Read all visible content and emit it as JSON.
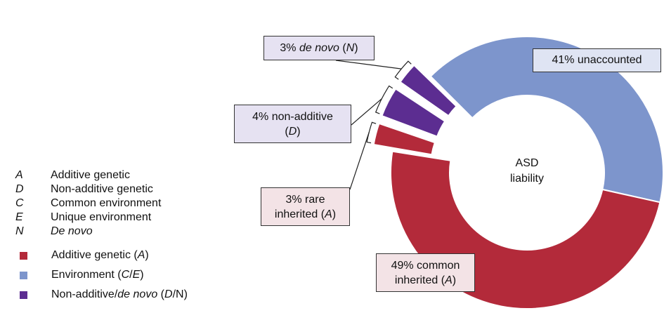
{
  "center_label": {
    "line1": "ASD",
    "line2": "liability"
  },
  "callouts": {
    "unaccounted": "41% unaccounted",
    "denovo_prefix": "3% ",
    "denovo_italic": "de novo",
    "denovo_paren_open": " (",
    "denovo_code": "N",
    "denovo_paren_close": ")",
    "nonadditive_line1": "4% non-additive",
    "nonadditive_paren_open": "(",
    "nonadditive_code": "D",
    "nonadditive_paren_close": ")",
    "rare_line1": "3% rare",
    "rare_line2_prefix": "inherited (",
    "rare_code": "A",
    "rare_line2_suffix": ")",
    "common_line1": "49% common",
    "common_line2_prefix": "inherited (",
    "common_code": "A",
    "common_line2_suffix": ")"
  },
  "legend_codes": [
    {
      "code": "A",
      "label": "Additive genetic"
    },
    {
      "code": "D",
      "label": "Non-additive genetic"
    },
    {
      "code": "C",
      "label": "Common environment"
    },
    {
      "code": "E",
      "label": "Unique environment"
    },
    {
      "code": "N",
      "label": "De novo"
    }
  ],
  "legend_colors": [
    {
      "color": "#b32a3a",
      "pre": "Additive genetic (",
      "it1": "A",
      "mid": "",
      "it2": "",
      "post": ")"
    },
    {
      "color": "#7d95cc",
      "pre": "Environment (",
      "it1": "C",
      "mid": "/",
      "it2": "E",
      "post": ")"
    },
    {
      "color": "#5c2d91",
      "pre": "Non-additive/",
      "it1": "de novo",
      "mid": " (",
      "it2": "D",
      "post": "/N)"
    }
  ],
  "chart_data": {
    "type": "pie",
    "style": "donut",
    "segments": [
      {
        "label": "41% unaccounted",
        "value": 41,
        "category": "Environment (C/E)",
        "color": "#7d95cc"
      },
      {
        "label": "49% common inherited (A)",
        "value": 49,
        "category": "Additive genetic (A)",
        "color": "#b32a3a"
      },
      {
        "label": "3% rare inherited (A)",
        "value": 3,
        "category": "Additive genetic (A)",
        "color": "#b32a3a",
        "exploded": true
      },
      {
        "label": "4% non-additive (D)",
        "value": 4,
        "category": "Non-additive/de novo (D/N)",
        "color": "#5c2d91",
        "exploded": true
      },
      {
        "label": "3% de novo (N)",
        "value": 3,
        "category": "Non-additive/de novo (D/N)",
        "color": "#5c2d91",
        "exploded": true
      }
    ],
    "center_text": "ASD liability"
  }
}
